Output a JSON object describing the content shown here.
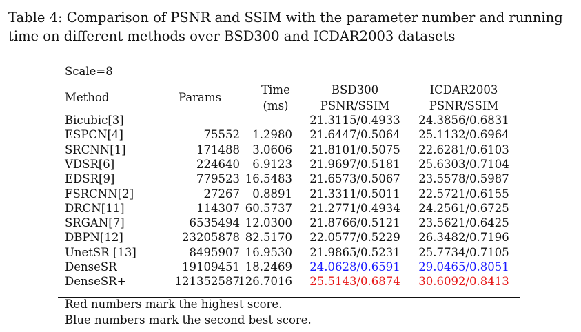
{
  "caption": "Table 4: Comparison of PSNR and SSIM with the parameter number and running time on different methods over BSD300 and ICDAR2003 datasets",
  "scale_label": "Scale=8",
  "headers": {
    "method": "Method",
    "params": "Params",
    "time_line1": "Time",
    "time_line2": "(ms)",
    "bsd_line1": "BSD300",
    "bsd_line2": "PSNR/SSIM",
    "icdar_line1": "ICDAR2003",
    "icdar_line2": "PSNR/SSIM"
  },
  "rows": [
    {
      "method": "Bicubic[3]",
      "params": "",
      "time": "",
      "bsd": "21.3115/0.4933",
      "icdar": "24.3856/0.6831",
      "highlight": ""
    },
    {
      "method": "ESPCN[4]",
      "params": "75552",
      "time": "1.2980",
      "bsd": "21.6447/0.5064",
      "icdar": "25.1132/0.6964",
      "highlight": ""
    },
    {
      "method": "SRCNN[1]",
      "params": "171488",
      "time": "3.0606",
      "bsd": "21.8101/0.5075",
      "icdar": "22.6281/0.6103",
      "highlight": ""
    },
    {
      "method": "VDSR[6]",
      "params": "224640",
      "time": "6.9123",
      "bsd": "21.9697/0.5181",
      "icdar": "25.6303/0.7104",
      "highlight": ""
    },
    {
      "method": "EDSR[9]",
      "params": "779523",
      "time": "16.5483",
      "bsd": "21.6573/0.5067",
      "icdar": "23.5578/0.5987",
      "highlight": ""
    },
    {
      "method": "FSRCNN[2]",
      "params": "27267",
      "time": "0.8891",
      "bsd": "21.3311/0.5011",
      "icdar": "22.5721/0.6155",
      "highlight": ""
    },
    {
      "method": "DRCN[11]",
      "params": "114307",
      "time": "60.5737",
      "bsd": "21.2771/0.4934",
      "icdar": "24.2561/0.6725",
      "highlight": ""
    },
    {
      "method": "SRGAN[7]",
      "params": "6535494",
      "time": "12.0300",
      "bsd": "21.8766/0.5121",
      "icdar": "23.5621/0.6425",
      "highlight": ""
    },
    {
      "method": "DBPN[12]",
      "params": "23205878",
      "time": "82.5170",
      "bsd": "22.0577/0.5229",
      "icdar": "26.3482/0.7196",
      "highlight": ""
    },
    {
      "method": "UnetSR [13]",
      "params": "8495907",
      "time": "16.9530",
      "bsd": "21.9865/0.5231",
      "icdar": "25.7734/0.7105",
      "highlight": ""
    },
    {
      "method": "DenseSR",
      "params": "19109451",
      "time": "18.2469",
      "bsd": "24.0628/0.6591",
      "icdar": "29.0465/0.8051",
      "highlight": "blue"
    },
    {
      "method": "DenseSR+",
      "params": "121352587",
      "time": "126.7016",
      "bsd": "25.5143/0.6874",
      "icdar": "30.6092/0.8413",
      "highlight": "red"
    }
  ],
  "footnotes": {
    "red": "Red numbers mark the highest score.",
    "blue": "Blue numbers mark the second best score."
  },
  "colors": {
    "highest": "#e61919",
    "second_best": "#1a1aff"
  }
}
